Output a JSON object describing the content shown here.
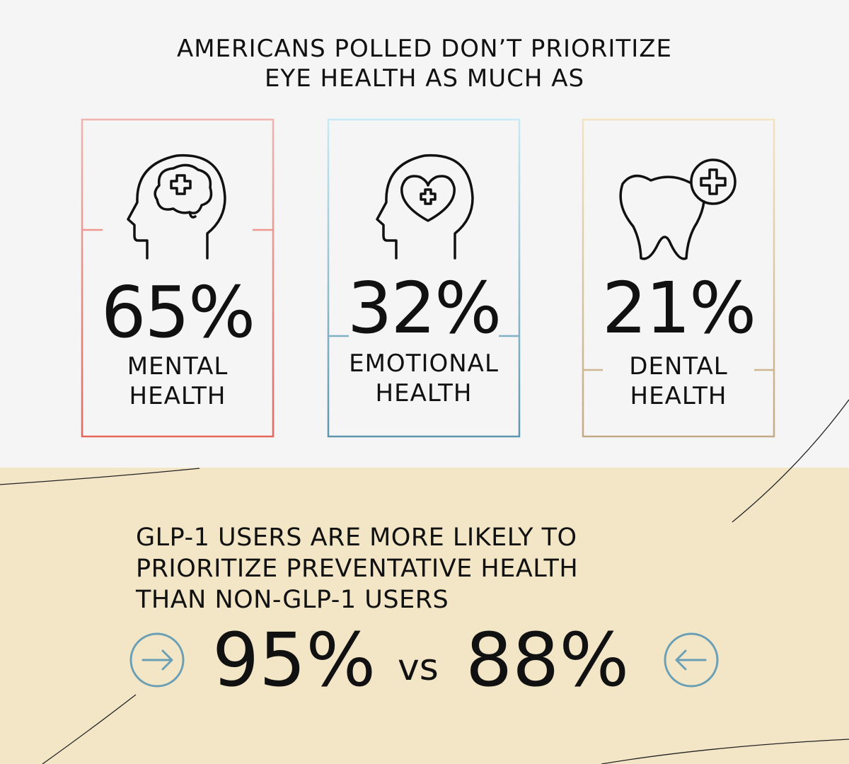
{
  "header": {
    "title_lines": [
      "AMERICANS POLLED DON’T PRIORITIZE",
      "EYE HEALTH AS MUCH AS"
    ]
  },
  "cards": [
    {
      "stat": "65%",
      "label_lines": [
        "MENTAL",
        "HEALTH"
      ]
    },
    {
      "stat": "32%",
      "label_lines": [
        "EMOTIONAL",
        "HEALTH"
      ]
    },
    {
      "stat": "21%",
      "label_lines": [
        "DENTAL",
        "HEALTH"
      ]
    }
  ],
  "comparison": {
    "heading_lines": [
      "GLP-1 USERS ARE MORE LIKELY TO",
      "PRIORITIZE PREVENTATIVE HEALTH",
      "THAN NON-GLP-1 USERS"
    ],
    "left": "95%",
    "joiner": "vs",
    "right": "88%"
  }
}
